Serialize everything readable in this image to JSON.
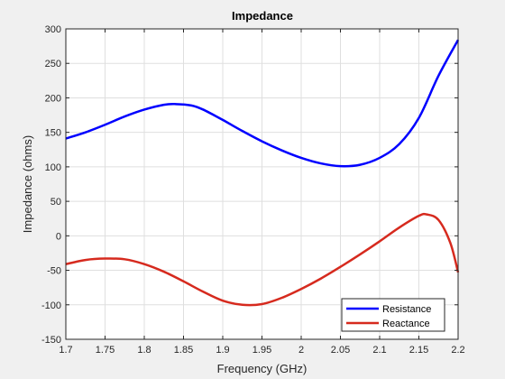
{
  "chart_data": {
    "type": "line",
    "title": "Impedance",
    "xlabel": "Frequency (GHz)",
    "ylabel": "Impedance (ohms)",
    "xlim": [
      1.7,
      2.2
    ],
    "ylim": [
      -150,
      300
    ],
    "x_ticks": [
      1.7,
      1.75,
      1.8,
      1.85,
      1.9,
      1.95,
      2.0,
      2.05,
      2.1,
      2.15,
      2.2
    ],
    "x_tick_labels": [
      "1.7",
      "1.75",
      "1.8",
      "1.85",
      "1.9",
      "1.95",
      "2",
      "2.05",
      "2.1",
      "2.15",
      "2.2"
    ],
    "y_ticks": [
      -150,
      -100,
      -50,
      0,
      50,
      100,
      150,
      200,
      250,
      300
    ],
    "y_tick_labels": [
      "-150",
      "-100",
      "-50",
      "0",
      "50",
      "100",
      "150",
      "200",
      "250",
      "300"
    ],
    "grid": true,
    "legend_position": "bottom-right",
    "series": [
      {
        "name": "Resistance",
        "color": "#0000ff",
        "x": [
          1.7,
          1.725,
          1.75,
          1.775,
          1.8,
          1.825,
          1.84,
          1.86,
          1.875,
          1.9,
          1.925,
          1.95,
          1.975,
          2.0,
          2.025,
          2.05,
          2.075,
          2.1,
          2.125,
          2.15,
          2.175,
          2.2
        ],
        "values": [
          141,
          150,
          161,
          173,
          183,
          190,
          191,
          189,
          183,
          168,
          152,
          137,
          124,
          113,
          105,
          101,
          103,
          113,
          133,
          171,
          232,
          284
        ]
      },
      {
        "name": "Reactance",
        "color": "#d62a1e",
        "x": [
          1.7,
          1.725,
          1.75,
          1.775,
          1.8,
          1.825,
          1.85,
          1.875,
          1.9,
          1.925,
          1.95,
          1.975,
          2.0,
          2.025,
          2.05,
          2.075,
          2.1,
          2.125,
          2.15,
          2.16,
          2.175,
          2.19,
          2.2
        ],
        "values": [
          -41,
          -35,
          -33,
          -34,
          -41,
          -52,
          -66,
          -81,
          -94,
          -100,
          -99,
          -90,
          -77,
          -62,
          -45,
          -27,
          -8,
          12,
          29,
          31,
          23,
          -10,
          -53
        ]
      }
    ]
  }
}
